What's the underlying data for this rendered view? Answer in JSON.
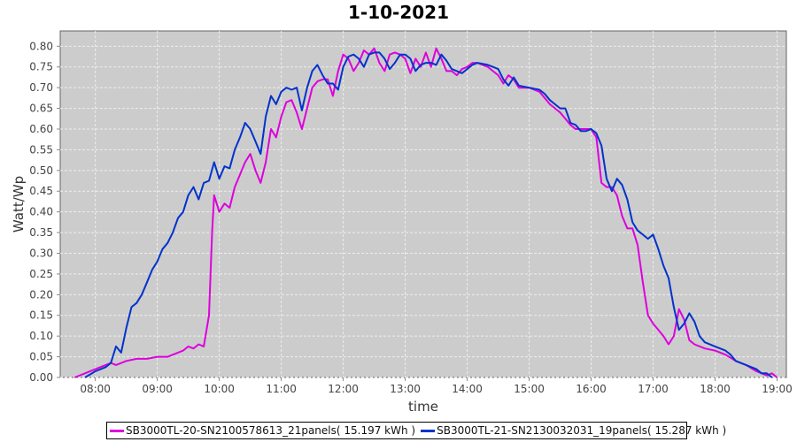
{
  "chart_data": {
    "type": "line",
    "title": "1-10-2021",
    "xlabel": "time",
    "ylabel": "Watt/Wp",
    "xlim": [
      "07:26",
      "19:09"
    ],
    "ylim": [
      0,
      0.837
    ],
    "grid": true,
    "legend_placement": "bottom",
    "x_ticks": [
      "08:00",
      "09:00",
      "10:00",
      "11:00",
      "12:00",
      "13:00",
      "14:00",
      "15:00",
      "16:00",
      "17:00",
      "18:00",
      "19:00"
    ],
    "y_ticks": [
      "0.00",
      "0.05",
      "0.10",
      "0.15",
      "0.20",
      "0.25",
      "0.30",
      "0.35",
      "0.40",
      "0.45",
      "0.50",
      "0.55",
      "0.60",
      "0.65",
      "0.70",
      "0.75",
      "0.80"
    ],
    "series": [
      {
        "name": "SB3000TL-20-SN2100578613_21panels( 15.197 kWh )",
        "color": "#dd00dd",
        "points": [
          [
            "07:40",
            0.0
          ],
          [
            "07:50",
            0.01
          ],
          [
            "08:00",
            0.02
          ],
          [
            "08:10",
            0.03
          ],
          [
            "08:15",
            0.035
          ],
          [
            "08:20",
            0.03
          ],
          [
            "08:30",
            0.04
          ],
          [
            "08:40",
            0.045
          ],
          [
            "08:50",
            0.045
          ],
          [
            "09:00",
            0.05
          ],
          [
            "09:10",
            0.05
          ],
          [
            "09:20",
            0.06
          ],
          [
            "09:25",
            0.065
          ],
          [
            "09:30",
            0.075
          ],
          [
            "09:35",
            0.07
          ],
          [
            "09:40",
            0.08
          ],
          [
            "09:45",
            0.075
          ],
          [
            "09:50",
            0.15
          ],
          [
            "09:53",
            0.35
          ],
          [
            "09:55",
            0.44
          ],
          [
            "10:00",
            0.4
          ],
          [
            "10:05",
            0.42
          ],
          [
            "10:10",
            0.41
          ],
          [
            "10:15",
            0.46
          ],
          [
            "10:20",
            0.49
          ],
          [
            "10:25",
            0.52
          ],
          [
            "10:30",
            0.54
          ],
          [
            "10:35",
            0.5
          ],
          [
            "10:40",
            0.47
          ],
          [
            "10:45",
            0.52
          ],
          [
            "10:50",
            0.6
          ],
          [
            "10:55",
            0.58
          ],
          [
            "11:00",
            0.63
          ],
          [
            "11:05",
            0.665
          ],
          [
            "11:10",
            0.67
          ],
          [
            "11:15",
            0.64
          ],
          [
            "11:20",
            0.6
          ],
          [
            "11:25",
            0.65
          ],
          [
            "11:30",
            0.7
          ],
          [
            "11:35",
            0.715
          ],
          [
            "11:40",
            0.72
          ],
          [
            "11:45",
            0.72
          ],
          [
            "11:50",
            0.68
          ],
          [
            "11:55",
            0.74
          ],
          [
            "12:00",
            0.78
          ],
          [
            "12:05",
            0.77
          ],
          [
            "12:10",
            0.74
          ],
          [
            "12:15",
            0.76
          ],
          [
            "12:20",
            0.79
          ],
          [
            "12:25",
            0.78
          ],
          [
            "12:30",
            0.795
          ],
          [
            "12:35",
            0.76
          ],
          [
            "12:40",
            0.74
          ],
          [
            "12:45",
            0.78
          ],
          [
            "12:50",
            0.785
          ],
          [
            "12:55",
            0.78
          ],
          [
            "13:00",
            0.77
          ],
          [
            "13:05",
            0.735
          ],
          [
            "13:10",
            0.77
          ],
          [
            "13:15",
            0.75
          ],
          [
            "13:20",
            0.785
          ],
          [
            "13:25",
            0.75
          ],
          [
            "13:30",
            0.795
          ],
          [
            "13:35",
            0.77
          ],
          [
            "13:40",
            0.74
          ],
          [
            "13:45",
            0.74
          ],
          [
            "13:50",
            0.73
          ],
          [
            "13:55",
            0.745
          ],
          [
            "14:00",
            0.75
          ],
          [
            "14:05",
            0.76
          ],
          [
            "14:10",
            0.76
          ],
          [
            "14:15",
            0.755
          ],
          [
            "14:20",
            0.75
          ],
          [
            "14:25",
            0.74
          ],
          [
            "14:30",
            0.73
          ],
          [
            "14:35",
            0.71
          ],
          [
            "14:40",
            0.73
          ],
          [
            "14:45",
            0.72
          ],
          [
            "14:50",
            0.7
          ],
          [
            "14:55",
            0.7
          ],
          [
            "15:00",
            0.7
          ],
          [
            "15:10",
            0.69
          ],
          [
            "15:15",
            0.675
          ],
          [
            "15:20",
            0.66
          ],
          [
            "15:30",
            0.64
          ],
          [
            "15:40",
            0.61
          ],
          [
            "15:45",
            0.6
          ],
          [
            "15:50",
            0.6
          ],
          [
            "16:00",
            0.6
          ],
          [
            "16:05",
            0.58
          ],
          [
            "16:10",
            0.47
          ],
          [
            "16:15",
            0.46
          ],
          [
            "16:20",
            0.46
          ],
          [
            "16:25",
            0.44
          ],
          [
            "16:30",
            0.39
          ],
          [
            "16:35",
            0.36
          ],
          [
            "16:40",
            0.36
          ],
          [
            "16:45",
            0.32
          ],
          [
            "16:50",
            0.23
          ],
          [
            "16:55",
            0.15
          ],
          [
            "17:00",
            0.13
          ],
          [
            "17:05",
            0.115
          ],
          [
            "17:10",
            0.1
          ],
          [
            "17:15",
            0.08
          ],
          [
            "17:20",
            0.1
          ],
          [
            "17:25",
            0.165
          ],
          [
            "17:30",
            0.14
          ],
          [
            "17:35",
            0.09
          ],
          [
            "17:40",
            0.08
          ],
          [
            "17:50",
            0.07
          ],
          [
            "18:00",
            0.065
          ],
          [
            "18:10",
            0.055
          ],
          [
            "18:20",
            0.04
          ],
          [
            "18:30",
            0.03
          ],
          [
            "18:40",
            0.015
          ],
          [
            "18:50",
            0.005
          ],
          [
            "18:55",
            0.01
          ],
          [
            "19:00",
            0.0
          ]
        ]
      },
      {
        "name": "SB3000TL-21-SN2130032031_19panels( 15.287 kWh )",
        "color": "#0033cc",
        "points": [
          [
            "07:50",
            0.0
          ],
          [
            "08:00",
            0.015
          ],
          [
            "08:10",
            0.025
          ],
          [
            "08:15",
            0.035
          ],
          [
            "08:20",
            0.075
          ],
          [
            "08:25",
            0.06
          ],
          [
            "08:30",
            0.12
          ],
          [
            "08:35",
            0.17
          ],
          [
            "08:40",
            0.18
          ],
          [
            "08:45",
            0.2
          ],
          [
            "08:50",
            0.23
          ],
          [
            "08:55",
            0.26
          ],
          [
            "09:00",
            0.28
          ],
          [
            "09:05",
            0.31
          ],
          [
            "09:10",
            0.325
          ],
          [
            "09:15",
            0.35
          ],
          [
            "09:20",
            0.385
          ],
          [
            "09:25",
            0.4
          ],
          [
            "09:30",
            0.44
          ],
          [
            "09:35",
            0.46
          ],
          [
            "09:40",
            0.43
          ],
          [
            "09:45",
            0.47
          ],
          [
            "09:50",
            0.475
          ],
          [
            "09:55",
            0.52
          ],
          [
            "10:00",
            0.48
          ],
          [
            "10:05",
            0.51
          ],
          [
            "10:10",
            0.505
          ],
          [
            "10:15",
            0.55
          ],
          [
            "10:20",
            0.58
          ],
          [
            "10:25",
            0.615
          ],
          [
            "10:30",
            0.6
          ],
          [
            "10:35",
            0.57
          ],
          [
            "10:40",
            0.54
          ],
          [
            "10:45",
            0.63
          ],
          [
            "10:50",
            0.68
          ],
          [
            "10:55",
            0.66
          ],
          [
            "11:00",
            0.69
          ],
          [
            "11:05",
            0.7
          ],
          [
            "11:10",
            0.695
          ],
          [
            "11:15",
            0.7
          ],
          [
            "11:20",
            0.645
          ],
          [
            "11:25",
            0.7
          ],
          [
            "11:30",
            0.74
          ],
          [
            "11:35",
            0.755
          ],
          [
            "11:40",
            0.73
          ],
          [
            "11:45",
            0.71
          ],
          [
            "11:50",
            0.71
          ],
          [
            "11:55",
            0.695
          ],
          [
            "12:00",
            0.75
          ],
          [
            "12:05",
            0.775
          ],
          [
            "12:10",
            0.78
          ],
          [
            "12:15",
            0.77
          ],
          [
            "12:20",
            0.75
          ],
          [
            "12:25",
            0.78
          ],
          [
            "12:30",
            0.785
          ],
          [
            "12:35",
            0.785
          ],
          [
            "12:40",
            0.77
          ],
          [
            "12:45",
            0.745
          ],
          [
            "12:50",
            0.76
          ],
          [
            "12:55",
            0.78
          ],
          [
            "13:00",
            0.78
          ],
          [
            "13:05",
            0.77
          ],
          [
            "13:10",
            0.74
          ],
          [
            "13:15",
            0.755
          ],
          [
            "13:20",
            0.76
          ],
          [
            "13:25",
            0.76
          ],
          [
            "13:30",
            0.755
          ],
          [
            "13:35",
            0.78
          ],
          [
            "13:40",
            0.765
          ],
          [
            "13:45",
            0.745
          ],
          [
            "13:50",
            0.74
          ],
          [
            "13:55",
            0.735
          ],
          [
            "14:00",
            0.745
          ],
          [
            "14:05",
            0.755
          ],
          [
            "14:10",
            0.76
          ],
          [
            "14:20",
            0.755
          ],
          [
            "14:25",
            0.75
          ],
          [
            "14:30",
            0.745
          ],
          [
            "14:35",
            0.72
          ],
          [
            "14:40",
            0.705
          ],
          [
            "14:45",
            0.725
          ],
          [
            "14:50",
            0.705
          ],
          [
            "15:00",
            0.7
          ],
          [
            "15:10",
            0.695
          ],
          [
            "15:15",
            0.685
          ],
          [
            "15:20",
            0.67
          ],
          [
            "15:25",
            0.66
          ],
          [
            "15:30",
            0.65
          ],
          [
            "15:35",
            0.65
          ],
          [
            "15:40",
            0.615
          ],
          [
            "15:45",
            0.61
          ],
          [
            "15:50",
            0.595
          ],
          [
            "15:55",
            0.595
          ],
          [
            "16:00",
            0.6
          ],
          [
            "16:05",
            0.59
          ],
          [
            "16:10",
            0.56
          ],
          [
            "16:15",
            0.48
          ],
          [
            "16:20",
            0.45
          ],
          [
            "16:25",
            0.48
          ],
          [
            "16:30",
            0.465
          ],
          [
            "16:35",
            0.43
          ],
          [
            "16:40",
            0.375
          ],
          [
            "16:45",
            0.355
          ],
          [
            "16:50",
            0.345
          ],
          [
            "16:55",
            0.335
          ],
          [
            "17:00",
            0.345
          ],
          [
            "17:05",
            0.31
          ],
          [
            "17:10",
            0.27
          ],
          [
            "17:15",
            0.24
          ],
          [
            "17:20",
            0.17
          ],
          [
            "17:25",
            0.115
          ],
          [
            "17:30",
            0.13
          ],
          [
            "17:35",
            0.155
          ],
          [
            "17:40",
            0.135
          ],
          [
            "17:45",
            0.1
          ],
          [
            "17:50",
            0.085
          ],
          [
            "18:00",
            0.075
          ],
          [
            "18:10",
            0.065
          ],
          [
            "18:15",
            0.055
          ],
          [
            "18:20",
            0.04
          ],
          [
            "18:30",
            0.03
          ],
          [
            "18:40",
            0.02
          ],
          [
            "18:45",
            0.01
          ],
          [
            "18:50",
            0.01
          ],
          [
            "18:55",
            0.0
          ]
        ]
      }
    ]
  }
}
